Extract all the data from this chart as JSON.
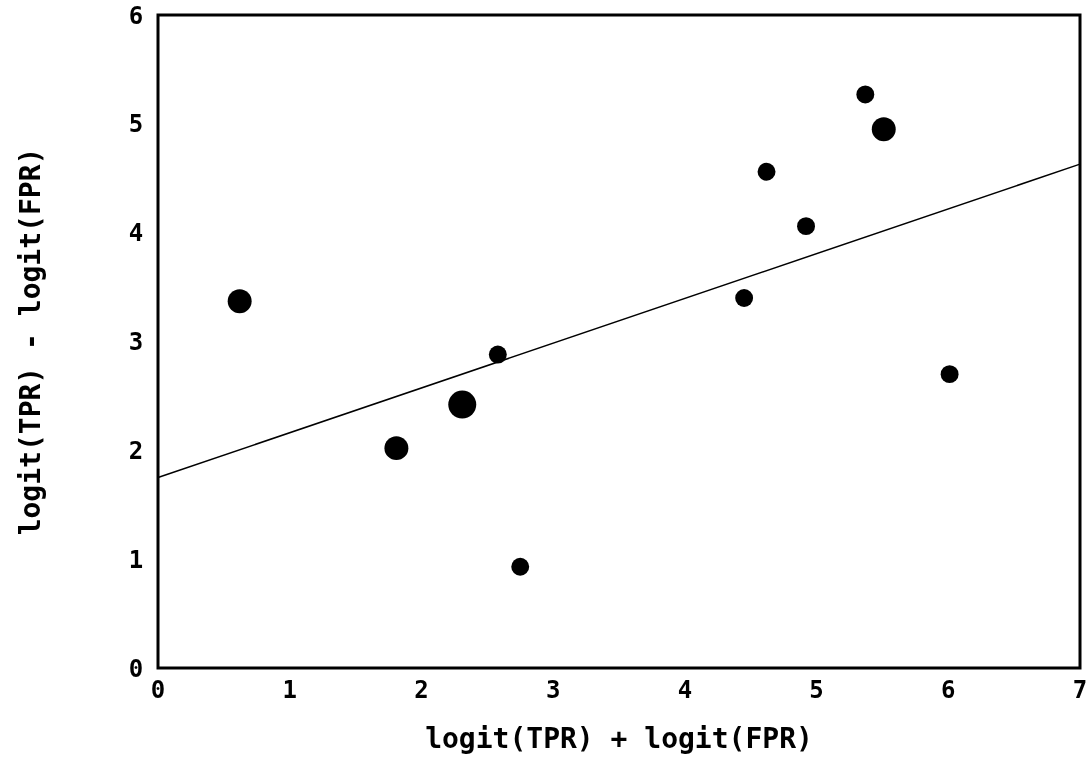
{
  "chart_data": {
    "type": "bubble",
    "xlabel": "logit(TPR) + logit(FPR)",
    "ylabel": "logit(TPR) - logit(FPR)",
    "xlim": [
      0,
      7
    ],
    "ylim": [
      0,
      6
    ],
    "xticks": [
      0,
      1,
      2,
      3,
      4,
      5,
      6,
      7
    ],
    "yticks": [
      0,
      1,
      2,
      3,
      4,
      5,
      6
    ],
    "grid": false,
    "series": [
      {
        "color": "#000000",
        "x": [
          0.62,
          1.81,
          2.31,
          2.58,
          2.75,
          4.45,
          4.62,
          4.92,
          5.37,
          5.51,
          6.01
        ],
        "values": [
          3.37,
          2.02,
          2.42,
          2.88,
          0.93,
          3.4,
          4.56,
          4.06,
          5.27,
          4.95,
          2.7
        ],
        "sizes": [
          0.73,
          0.73,
          1,
          0.41,
          0.41,
          0.41,
          0.41,
          0.41,
          0.41,
          0.73,
          0.41
        ]
      },
      {
        "type": "line",
        "color": "#000000",
        "x": [
          0,
          7
        ],
        "values": [
          1.75,
          4.63
        ]
      }
    ]
  }
}
